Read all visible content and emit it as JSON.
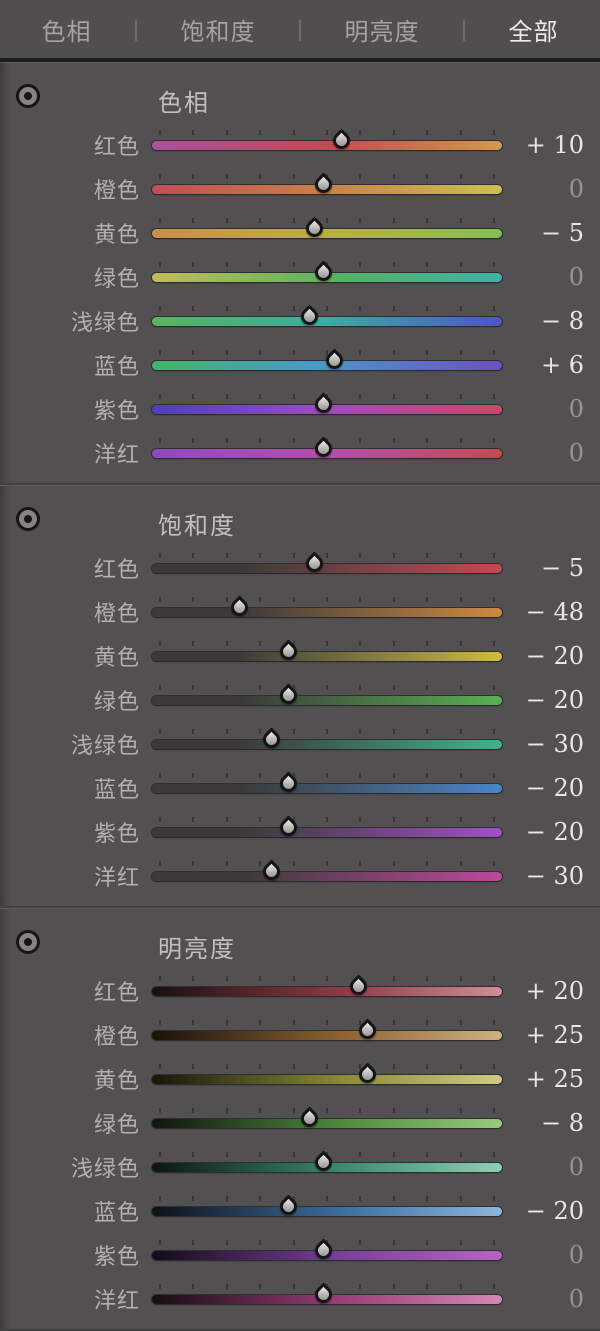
{
  "colors": {
    "page_bg": "#454344",
    "panel_bg": "#535052",
    "tabbar_bg": "#504e4e",
    "tab_selected": "#edebe8",
    "value_bright": "#e8e5e2",
    "value_dim": "#98948f"
  },
  "tab_bar": {
    "divider": "|",
    "items": [
      {
        "label": "色相",
        "selected": false
      },
      {
        "label": "饱和度",
        "selected": false
      },
      {
        "label": "明亮度",
        "selected": false
      },
      {
        "label": "全部",
        "selected": true
      }
    ]
  },
  "slider": {
    "min": -100,
    "max": 100,
    "tick_count": 11
  },
  "sections": [
    {
      "title": "色相",
      "icon": "targeted-adjustment-icon",
      "rows": [
        {
          "label": "红色",
          "value": 10,
          "display": "+ 10",
          "track": [
            "#a9529e",
            "#bf4b55 50%",
            "#d09a4c"
          ]
        },
        {
          "label": "橙色",
          "value": 0,
          "display": "0",
          "track": [
            "#c24d55",
            "#c8824a 50%",
            "#cbc04f"
          ]
        },
        {
          "label": "黄色",
          "value": -5,
          "display": "− 5",
          "track": [
            "#cb8d4c",
            "#bcae4c 50%",
            "#83bf55"
          ]
        },
        {
          "label": "绿色",
          "value": 0,
          "display": "0",
          "track": [
            "#c2bd55",
            "#53b264 55%",
            "#3eb4a8"
          ]
        },
        {
          "label": "浅绿色",
          "value": -8,
          "display": "− 8",
          "track": [
            "#57b55f",
            "#3faaa2 50%",
            "#4b55c4"
          ]
        },
        {
          "label": "蓝色",
          "value": 6,
          "display": "+ 6",
          "track": [
            "#42b668",
            "#4a9cc6 45%",
            "#6e4ec2"
          ]
        },
        {
          "label": "紫色",
          "value": 0,
          "display": "0",
          "track": [
            "#4b41b8",
            "#a04cc0 50%",
            "#c84a66"
          ]
        },
        {
          "label": "洋红",
          "value": 0,
          "display": "0",
          "track": [
            "#8d4ac0",
            "#b44fae 50%",
            "#c64950"
          ]
        }
      ]
    },
    {
      "title": "饱和度",
      "icon": "targeted-adjustment-icon",
      "rows": [
        {
          "label": "红色",
          "value": -5,
          "display": "− 5",
          "track": [
            "#3b3a39",
            "#3b3a39 25%",
            "#c24a52"
          ]
        },
        {
          "label": "橙色",
          "value": -48,
          "display": "− 48",
          "track": [
            "#3b3a39",
            "#3b3a39 25%",
            "#cd8a43"
          ]
        },
        {
          "label": "黄色",
          "value": -20,
          "display": "− 20",
          "track": [
            "#3b3a39",
            "#3b3a39 25%",
            "#cdbb49"
          ]
        },
        {
          "label": "绿色",
          "value": -20,
          "display": "− 20",
          "track": [
            "#3b3a39",
            "#3b3a39 25%",
            "#58b153"
          ]
        },
        {
          "label": "浅绿色",
          "value": -30,
          "display": "− 30",
          "track": [
            "#3b3a39",
            "#3b3a39 25%",
            "#41b18e"
          ]
        },
        {
          "label": "蓝色",
          "value": -20,
          "display": "− 20",
          "track": [
            "#3b3a39",
            "#3b3a39 25%",
            "#4a86c8"
          ]
        },
        {
          "label": "紫色",
          "value": -20,
          "display": "− 20",
          "track": [
            "#3b3a39",
            "#3b3a39 25%",
            "#a050c4"
          ]
        },
        {
          "label": "洋红",
          "value": -30,
          "display": "− 30",
          "track": [
            "#3b3a39",
            "#3b3a39 25%",
            "#bc4a9c"
          ]
        }
      ]
    },
    {
      "title": "明亮度",
      "icon": "targeted-adjustment-icon",
      "rows": [
        {
          "label": "红色",
          "value": 20,
          "display": "+ 20",
          "track": [
            "#171010",
            "#8f3a46 55%",
            "#cf8f99"
          ]
        },
        {
          "label": "橙色",
          "value": 25,
          "display": "+ 25",
          "track": [
            "#171209",
            "#8f6434 55%",
            "#cfb183"
          ]
        },
        {
          "label": "黄色",
          "value": 25,
          "display": "+ 25",
          "track": [
            "#16160a",
            "#8c8c38 55%",
            "#cfcb85"
          ]
        },
        {
          "label": "绿色",
          "value": -8,
          "display": "− 8",
          "track": [
            "#0e150c",
            "#4f8c3e 55%",
            "#97cb7c"
          ]
        },
        {
          "label": "浅绿色",
          "value": 0,
          "display": "0",
          "track": [
            "#0c1512",
            "#3c8c72 55%",
            "#8fd0b4"
          ]
        },
        {
          "label": "蓝色",
          "value": -20,
          "display": "− 20",
          "track": [
            "#0c1118",
            "#3e6f9e 55%",
            "#8fb6dc"
          ]
        },
        {
          "label": "紫色",
          "value": 0,
          "display": "0",
          "track": [
            "#120c16",
            "#7d3f9e 55%",
            "#b665c6"
          ]
        },
        {
          "label": "洋红",
          "value": 0,
          "display": "0",
          "track": [
            "#160c12",
            "#9e3f7a 55%",
            "#d488b4"
          ]
        }
      ]
    }
  ]
}
